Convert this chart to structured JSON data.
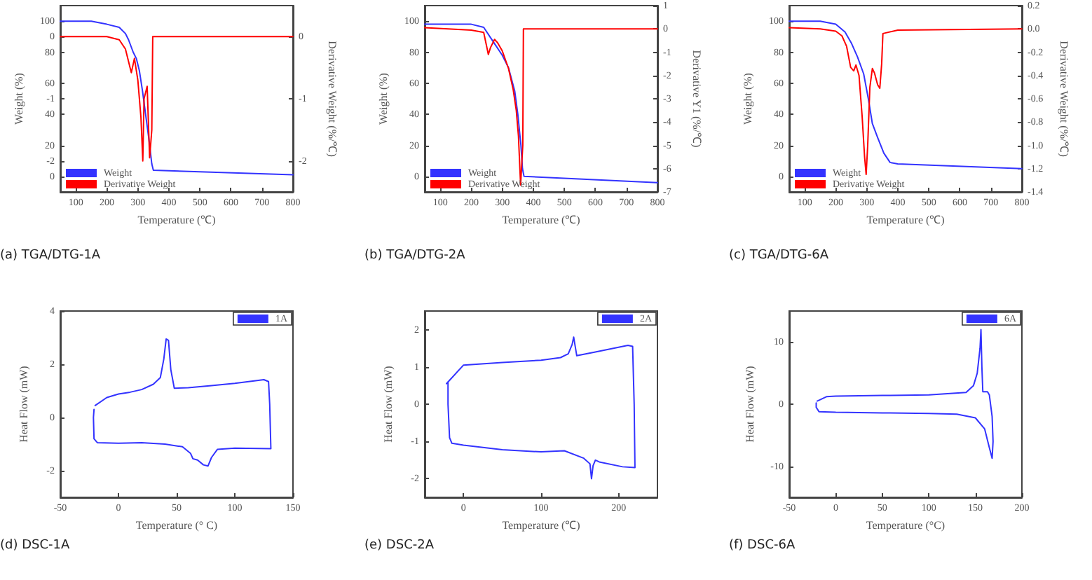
{
  "chart_data": [
    {
      "type": "line",
      "xlabel": "Temperature (℃)",
      "ylabel": "Weight (%)",
      "y2label": "Derivative Weight (%/℃)",
      "annotations": [
        "(a) TGA/DTG-1A"
      ],
      "xlim": [
        50,
        800
      ],
      "xticks": [
        100,
        200,
        300,
        400,
        500,
        600,
        700,
        800
      ],
      "ylim": [
        -10,
        110
      ],
      "yticks": [
        0,
        20,
        40,
        60,
        80,
        100
      ],
      "y2lim": [
        -2.5,
        0.5
      ],
      "y2ticks": [
        0,
        -1,
        -2
      ],
      "y3lim": [
        -2.5,
        0.5
      ],
      "y3ticks": [
        0,
        -1,
        -2
      ],
      "legend": "bottom left",
      "series": [
        {
          "name": "Weight",
          "color": "#3333ff",
          "x": [
            50,
            150,
            200,
            240,
            260,
            270,
            285,
            295,
            305,
            315,
            325,
            335,
            345,
            350,
            500,
            800
          ],
          "values": [
            100,
            100,
            98,
            96,
            92,
            88,
            80,
            76,
            68,
            55,
            40,
            25,
            8,
            4,
            3,
            1
          ]
        },
        {
          "name": "Derivative Weight",
          "color": "#ff0000",
          "axis": "y2",
          "x": [
            50,
            200,
            240,
            260,
            279,
            289,
            300,
            310,
            316,
            320,
            330,
            338,
            345,
            348,
            800
          ],
          "values": [
            0,
            0,
            -0.05,
            -0.2,
            -0.58,
            -0.35,
            -0.7,
            -1.3,
            -2.0,
            -1.0,
            -0.8,
            -1.95,
            -1.5,
            0,
            0
          ]
        }
      ]
    },
    {
      "type": "line",
      "xlabel": "Temperature (℃)",
      "ylabel": "Weight (%)",
      "y2label": "Derivative Y1 (%/℃)",
      "annotations": [
        "(b) TGA/DTG-2A"
      ],
      "xlim": [
        50,
        800
      ],
      "xticks": [
        100,
        200,
        300,
        400,
        500,
        600,
        700,
        800
      ],
      "ylim": [
        -10,
        110
      ],
      "yticks": [
        0,
        20,
        40,
        60,
        80,
        100
      ],
      "y2lim": [
        -7,
        1
      ],
      "y2ticks": [
        1,
        0,
        -1,
        -2,
        -3,
        -4,
        -5,
        -6,
        -7
      ],
      "legend": "bottom left",
      "series": [
        {
          "name": "Weight",
          "color": "#3333ff",
          "x": [
            50,
            200,
            240,
            260,
            280,
            300,
            320,
            340,
            350,
            360,
            365,
            370,
            800
          ],
          "values": [
            98,
            98,
            96,
            90,
            84,
            78,
            70,
            55,
            40,
            20,
            5,
            0,
            -4
          ]
        },
        {
          "name": "Derivative Weight",
          "color": "#ff0000",
          "axis": "y2",
          "x": [
            50,
            200,
            240,
            255,
            262,
            275,
            285,
            300,
            320,
            335,
            345,
            352,
            359,
            366,
            368,
            800
          ],
          "values": [
            0.05,
            -0.05,
            -0.15,
            -1.1,
            -0.8,
            -0.45,
            -0.6,
            -0.95,
            -1.7,
            -2.6,
            -3.5,
            -4.6,
            -6.7,
            -5,
            0,
            0
          ]
        }
      ]
    },
    {
      "type": "line",
      "xlabel": "Temperature (℃)",
      "ylabel": "Weight (%)",
      "y2label": "Derivative Weight (%/℃)",
      "annotations": [
        "(c) TGA/DTG-6A"
      ],
      "xlim": [
        50,
        800
      ],
      "xticks": [
        100,
        200,
        300,
        400,
        500,
        600,
        700,
        800
      ],
      "ylim": [
        -10,
        110
      ],
      "yticks": [
        0,
        20,
        40,
        60,
        80,
        100
      ],
      "y2lim": [
        -1.4,
        0.2
      ],
      "y2ticks": [
        0.2,
        {
          "value": 0,
          "label": "0.0"
        },
        -0.2,
        -0.4,
        -0.6,
        -0.8,
        {
          "value": -1,
          "label": "-1.0"
        },
        -1.2,
        -1.4
      ],
      "legend": "bottom left",
      "series": [
        {
          "name": "Weight",
          "color": "#3333ff",
          "x": [
            50,
            150,
            200,
            230,
            250,
            270,
            290,
            305,
            318,
            335,
            355,
            375,
            400,
            800
          ],
          "values": [
            100,
            100,
            98,
            93,
            86,
            77,
            66,
            50,
            34,
            25,
            15,
            9,
            8,
            5
          ]
        },
        {
          "name": "Derivative Weight",
          "color": "#ff0000",
          "axis": "y2",
          "x": [
            50,
            150,
            200,
            220,
            235,
            248,
            258,
            265,
            275,
            285,
            293,
            298,
            303,
            310,
            318,
            325,
            335,
            342,
            348,
            352,
            400,
            800
          ],
          "values": [
            0.01,
            0,
            -0.02,
            -0.06,
            -0.15,
            -0.33,
            -0.36,
            -0.31,
            -0.4,
            -0.75,
            -1.1,
            -1.25,
            -1.0,
            -0.5,
            -0.34,
            -0.38,
            -0.48,
            -0.51,
            -0.3,
            -0.04,
            -0.01,
            0
          ]
        }
      ]
    },
    {
      "type": "line",
      "xlabel": "Temperature (° C)",
      "ylabel": "Heat Flow (mW)",
      "annotations": [
        "(d) DSC-1A"
      ],
      "xlim": [
        -50,
        150
      ],
      "xticks": [
        -50,
        0,
        50,
        100,
        150
      ],
      "ylim": [
        -3,
        4
      ],
      "yticks": [
        -2,
        0,
        2,
        4
      ],
      "legend": "top right",
      "series": [
        {
          "name": "1A",
          "color": "#3333ff",
          "x": [
            -20,
            -10,
            0,
            10,
            20,
            30,
            36,
            39,
            41,
            43,
            45,
            48,
            60,
            80,
            100,
            125,
            129,
            130,
            131,
            100,
            85,
            80,
            77,
            73,
            68,
            64,
            62,
            55,
            40,
            20,
            0,
            -18,
            -21,
            -21.5,
            -21
          ],
          "values": [
            0.45,
            0.75,
            0.88,
            0.95,
            1.05,
            1.25,
            1.5,
            2.2,
            2.95,
            2.9,
            1.8,
            1.1,
            1.12,
            1.2,
            1.28,
            1.42,
            1.35,
            0.5,
            -1.17,
            -1.15,
            -1.2,
            -1.5,
            -1.82,
            -1.78,
            -1.6,
            -1.55,
            -1.35,
            -1.1,
            -1.0,
            -0.95,
            -0.97,
            -0.95,
            -0.8,
            0,
            0.3
          ]
        }
      ]
    },
    {
      "type": "line",
      "xlabel": "Temperature (℃)",
      "ylabel": "Heat Flow (mW)",
      "annotations": [
        "(e) DSC-2A"
      ],
      "xlim": [
        -50,
        250
      ],
      "xticks": [
        0,
        100,
        200
      ],
      "ylim": [
        -2.5,
        2.5
      ],
      "yticks": [
        -2,
        -1,
        0,
        1,
        2
      ],
      "legend": "top right",
      "series": [
        {
          "name": "2A",
          "color": "#3333ff",
          "x": [
            -22,
            0,
            50,
            100,
            125,
            135,
            140,
            142,
            144,
            146,
            170,
            212,
            218,
            220,
            221,
            205,
            175,
            170,
            167,
            165,
            163,
            155,
            130,
            100,
            50,
            0,
            -15,
            -18,
            -20,
            -20
          ],
          "values": [
            0.55,
            1.05,
            1.12,
            1.18,
            1.25,
            1.35,
            1.6,
            1.8,
            1.55,
            1.3,
            1.4,
            1.58,
            1.55,
            0,
            -1.7,
            -1.68,
            -1.55,
            -1.5,
            -1.65,
            -2.0,
            -1.6,
            -1.45,
            -1.25,
            -1.28,
            -1.22,
            -1.1,
            -1.05,
            -0.9,
            0,
            0.6
          ]
        }
      ]
    },
    {
      "type": "line",
      "xlabel": "Temperature (°C)",
      "ylabel": "Heat Flow (mW)",
      "annotations": [
        "(f) DSC-6A"
      ],
      "xlim": [
        -50,
        200
      ],
      "xticks": [
        -50,
        0,
        50,
        100,
        150,
        200
      ],
      "ylim": [
        -15,
        15
      ],
      "yticks": [
        -10,
        0,
        10
      ],
      "legend": "top right",
      "series": [
        {
          "name": "6A",
          "color": "#3333ff",
          "x": [
            -20,
            -10,
            0,
            50,
            100,
            140,
            148,
            152,
            155,
            156,
            157,
            158,
            163,
            165,
            168,
            169,
            168,
            165,
            160,
            150,
            130,
            100,
            50,
            0,
            -18,
            -21,
            -21
          ],
          "values": [
            0.5,
            1.2,
            1.3,
            1.4,
            1.5,
            1.9,
            3,
            5,
            9,
            12,
            6,
            2,
            2,
            1.5,
            -2,
            -6,
            -8.7,
            -7,
            -4,
            -2.2,
            -1.6,
            -1.5,
            -1.4,
            -1.3,
            -1.2,
            -0.5,
            0.2
          ]
        }
      ]
    }
  ]
}
